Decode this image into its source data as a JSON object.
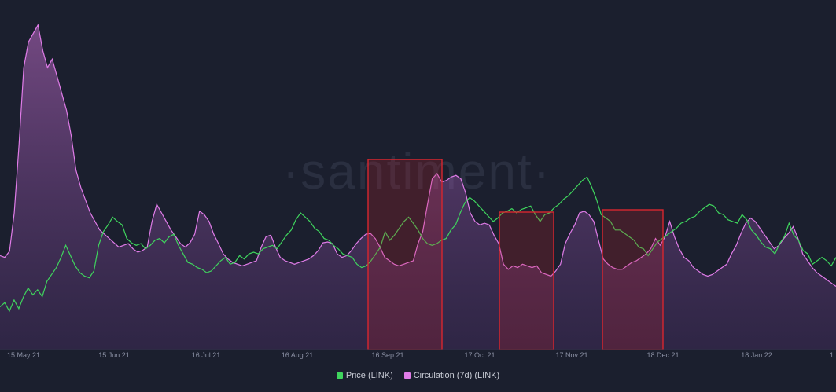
{
  "watermark": "·santiment·",
  "chart_data": {
    "type": "line",
    "x_ticks": [
      "15 May 21",
      "15 Jun 21",
      "16 Jul 21",
      "16 Aug 21",
      "16 Sep 21",
      "17 Oct 21",
      "17 Nov 21",
      "18 Dec 21",
      "18 Jan 22",
      "1"
    ],
    "grid": false,
    "legend_position": "bottom-center",
    "series": [
      {
        "name": "Price (LINK)",
        "color": "#3fd45d",
        "values": [
          50,
          55,
          45,
          58,
          48,
          62,
          72,
          64,
          70,
          62,
          80,
          88,
          96,
          108,
          122,
          110,
          98,
          90,
          86,
          84,
          92,
          122,
          138,
          146,
          155,
          150,
          146,
          130,
          125,
          122,
          124,
          118,
          122,
          128,
          130,
          125,
          132,
          135,
          122,
          112,
          102,
          100,
          96,
          94,
          90,
          92,
          98,
          104,
          108,
          100,
          102,
          110,
          106,
          112,
          114,
          112,
          118,
          120,
          122,
          118,
          126,
          134,
          140,
          152,
          160,
          155,
          150,
          142,
          138,
          130,
          128,
          122,
          118,
          112,
          110,
          108,
          100,
          96,
          98,
          104,
          112,
          120,
          138,
          128,
          134,
          142,
          150,
          155,
          148,
          140,
          130,
          124,
          122,
          124,
          128,
          130,
          140,
          146,
          160,
          172,
          178,
          174,
          168,
          162,
          156,
          150,
          154,
          160,
          162,
          165,
          160,
          164,
          166,
          168,
          158,
          150,
          158,
          160,
          166,
          170,
          176,
          180,
          186,
          192,
          198,
          202,
          190,
          176,
          158,
          154,
          150,
          140,
          140,
          136,
          132,
          128,
          120,
          118,
          110,
          118,
          126,
          130,
          134,
          138,
          142,
          148,
          150,
          154,
          156,
          162,
          166,
          170,
          168,
          160,
          158,
          152,
          150,
          148,
          158,
          152,
          140,
          134,
          126,
          120,
          118,
          112,
          124,
          132,
          148,
          134,
          128,
          116,
          112,
          100,
          104,
          108,
          104,
          98,
          108
        ]
      },
      {
        "name": "Circulation (7d) (LINK)",
        "color": "#e07ce8",
        "values": [
          110,
          108,
          115,
          160,
          240,
          330,
          360,
          370,
          380,
          350,
          330,
          340,
          320,
          300,
          280,
          250,
          210,
          190,
          175,
          160,
          150,
          140,
          135,
          130,
          125,
          120,
          122,
          124,
          118,
          114,
          116,
          120,
          150,
          170,
          160,
          150,
          140,
          132,
          124,
          120,
          125,
          135,
          162,
          158,
          150,
          135,
          124,
          112,
          106,
          102,
          100,
          98,
          100,
          102,
          104,
          120,
          132,
          134,
          120,
          108,
          104,
          102,
          100,
          102,
          104,
          106,
          110,
          116,
          125,
          126,
          124,
          112,
          108,
          110,
          116,
          124,
          130,
          135,
          136,
          130,
          120,
          108,
          104,
          100,
          98,
          100,
          102,
          104,
          124,
          138,
          170,
          200,
          206,
          196,
          198,
          202,
          204,
          200,
          184,
          160,
          150,
          146,
          148,
          146,
          134,
          124,
          100,
          94,
          98,
          96,
          100,
          98,
          96,
          98,
          90,
          88,
          86,
          92,
          100,
          124,
          136,
          146,
          160,
          162,
          158,
          150,
          128,
          106,
          100,
          96,
          94,
          94,
          98,
          102,
          104,
          108,
          112,
          118,
          130,
          122,
          132,
          150,
          132,
          118,
          108,
          104,
          96,
          92,
          88,
          86,
          88,
          92,
          96,
          100,
          112,
          122,
          136,
          148,
          154,
          150,
          142,
          134,
          126,
          118,
          122,
          130,
          136,
          144,
          130,
          112,
          104,
          96,
          90,
          86,
          82,
          78,
          74
        ]
      }
    ]
  },
  "legend": {
    "items": [
      {
        "label": "Price (LINK)",
        "color": "#3fd45d"
      },
      {
        "label": "Circulation (7d) (LINK)",
        "color": "#e07ce8"
      }
    ]
  }
}
